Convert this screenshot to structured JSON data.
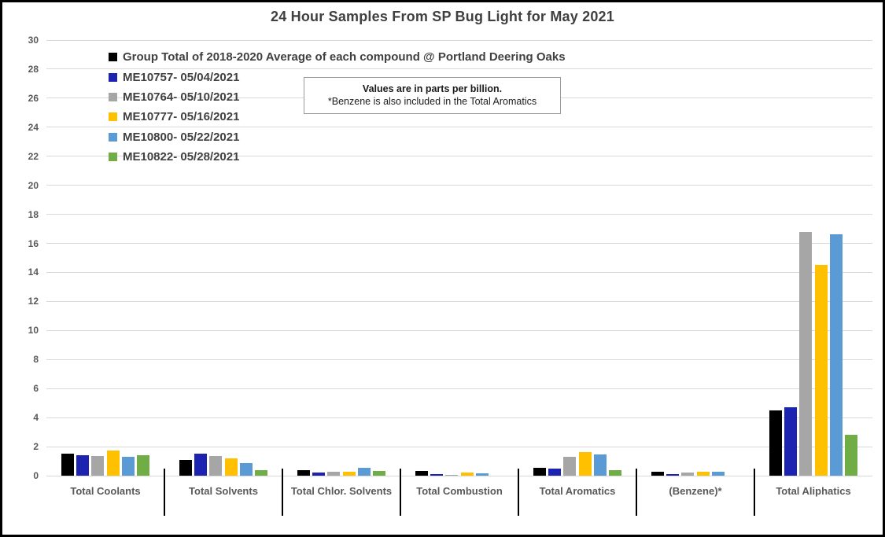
{
  "title": "24 Hour Samples From SP Bug Light for May 2021",
  "note": {
    "line1": "Values are in parts per billion.",
    "line2": "*Benzene is also included in the Total Aromatics"
  },
  "colors": {
    "grid": "#d9d9d9",
    "axis_text": "#595959",
    "title_text": "#3f3f3f",
    "divider": "#000000"
  },
  "chart_data": {
    "type": "bar",
    "title": "24 Hour Samples From SP Bug Light for May 2021",
    "unit": "parts per billion",
    "xlabel": "",
    "ylabel": "",
    "ylim": [
      0,
      30
    ],
    "ytick_step": 2,
    "yticks": [
      0,
      2,
      4,
      6,
      8,
      10,
      12,
      14,
      16,
      18,
      20,
      22,
      24,
      26,
      28,
      30
    ],
    "grid": true,
    "legend_position": "top-left-inside",
    "categories": [
      "Total Coolants",
      "Total Solvents",
      "Total Chlor. Solvents",
      "Total Combustion",
      "Total Aromatics",
      "(Benzene)*",
      "Total Aliphatics"
    ],
    "series": [
      {
        "name": "Group Total of 2018-2020 Average of each compound @ Portland Deering Oaks",
        "color": "#000000",
        "values": [
          1.5,
          1.1,
          0.4,
          0.3,
          0.55,
          0.25,
          4.5
        ]
      },
      {
        "name": "ME10757- 05/04/2021",
        "color": "#1c23b0",
        "values": [
          1.4,
          1.5,
          0.2,
          0.1,
          0.5,
          0.1,
          4.7
        ]
      },
      {
        "name": "ME10764- 05/10/2021",
        "color": "#a6a6a6",
        "values": [
          1.35,
          1.35,
          0.25,
          0.05,
          1.3,
          0.2,
          16.8
        ]
      },
      {
        "name": "ME10777- 05/16/2021",
        "color": "#ffc000",
        "values": [
          1.75,
          1.2,
          0.25,
          0.2,
          1.65,
          0.25,
          14.5
        ]
      },
      {
        "name": "ME10800- 05/22/2021",
        "color": "#5b9bd5",
        "values": [
          1.3,
          0.85,
          0.55,
          0.15,
          1.45,
          0.25,
          16.6
        ]
      },
      {
        "name": "ME10822- 05/28/2021",
        "color": "#70ad47",
        "values": [
          1.4,
          0.4,
          0.3,
          0,
          0.4,
          0,
          2.8
        ]
      }
    ]
  }
}
